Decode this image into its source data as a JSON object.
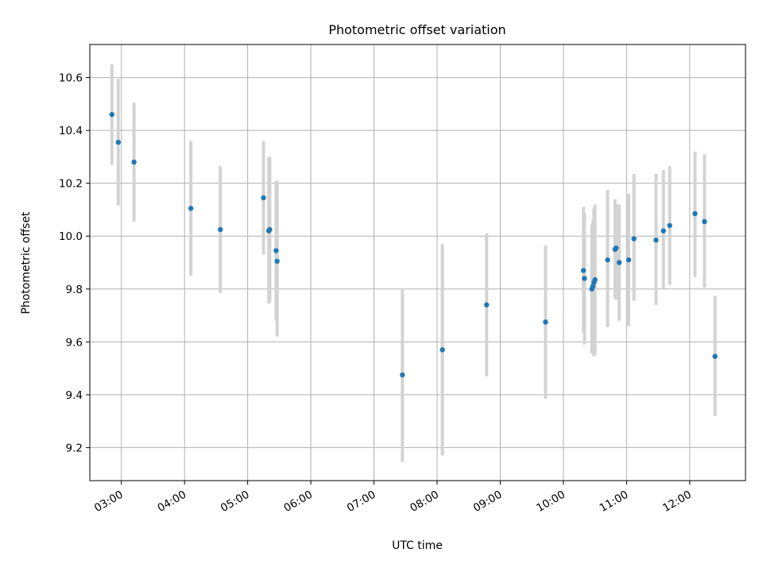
{
  "chart_data": {
    "type": "scatter",
    "title": "Photometric offset variation",
    "xlabel": "UTC time",
    "ylabel": "Photometric offset",
    "grid": true,
    "xlim": [
      "02:30",
      "12:53"
    ],
    "ylim": [
      9.075,
      10.725
    ],
    "x_ticks": [
      "03:00",
      "04:00",
      "05:00",
      "06:00",
      "07:00",
      "08:00",
      "09:00",
      "10:00",
      "11:00",
      "12:00"
    ],
    "y_ticks": [
      9.2,
      9.4,
      9.6,
      9.8,
      10.0,
      10.2,
      10.4,
      10.6
    ],
    "y_tick_labels": [
      "9.2",
      "9.4",
      "9.6",
      "9.8",
      "10.0",
      "10.2",
      "10.4",
      "10.6"
    ],
    "colors": {
      "points": "#1f77b4",
      "error_bars": "#d3d3d3"
    },
    "points": [
      {
        "x": "02:51",
        "y": 10.46,
        "ylow": 10.27,
        "yhigh": 10.65
      },
      {
        "x": "02:57",
        "y": 10.355,
        "ylow": 10.115,
        "yhigh": 10.595
      },
      {
        "x": "03:12",
        "y": 10.28,
        "ylow": 10.055,
        "yhigh": 10.505
      },
      {
        "x": "04:06",
        "y": 10.105,
        "ylow": 9.85,
        "yhigh": 10.36
      },
      {
        "x": "04:34",
        "y": 10.025,
        "ylow": 9.785,
        "yhigh": 10.265
      },
      {
        "x": "05:15",
        "y": 10.145,
        "ylow": 9.93,
        "yhigh": 10.36
      },
      {
        "x": "05:20",
        "y": 10.02,
        "ylow": 9.745,
        "yhigh": 10.3
      },
      {
        "x": "05:21",
        "y": 10.025,
        "ylow": 9.75,
        "yhigh": 10.3
      },
      {
        "x": "05:27",
        "y": 9.945,
        "ylow": 9.68,
        "yhigh": 10.21
      },
      {
        "x": "05:28",
        "y": 9.905,
        "ylow": 9.62,
        "yhigh": 10.21
      },
      {
        "x": "07:27",
        "y": 9.475,
        "ylow": 9.145,
        "yhigh": 9.8
      },
      {
        "x": "08:05",
        "y": 9.57,
        "ylow": 9.17,
        "yhigh": 9.97
      },
      {
        "x": "08:47",
        "y": 9.74,
        "ylow": 9.47,
        "yhigh": 10.01
      },
      {
        "x": "09:43",
        "y": 9.675,
        "ylow": 9.385,
        "yhigh": 9.965
      },
      {
        "x": "10:19",
        "y": 9.87,
        "ylow": 9.635,
        "yhigh": 10.11
      },
      {
        "x": "10:20",
        "y": 9.84,
        "ylow": 9.59,
        "yhigh": 10.09
      },
      {
        "x": "10:27",
        "y": 9.8,
        "ylow": 9.555,
        "yhigh": 10.045
      },
      {
        "x": "10:28",
        "y": 9.81,
        "ylow": 9.56,
        "yhigh": 10.06
      },
      {
        "x": "10:29",
        "y": 9.825,
        "ylow": 9.545,
        "yhigh": 10.105
      },
      {
        "x": "10:30",
        "y": 9.835,
        "ylow": 9.55,
        "yhigh": 10.12
      },
      {
        "x": "10:42",
        "y": 9.91,
        "ylow": 9.655,
        "yhigh": 10.175
      },
      {
        "x": "10:49",
        "y": 9.95,
        "ylow": 9.765,
        "yhigh": 10.14
      },
      {
        "x": "10:50",
        "y": 9.955,
        "ylow": 9.76,
        "yhigh": 10.12
      },
      {
        "x": "10:53",
        "y": 9.9,
        "ylow": 9.68,
        "yhigh": 10.12
      },
      {
        "x": "11:02",
        "y": 9.91,
        "ylow": 9.66,
        "yhigh": 10.16
      },
      {
        "x": "11:07",
        "y": 9.99,
        "ylow": 9.755,
        "yhigh": 10.235
      },
      {
        "x": "11:28",
        "y": 9.985,
        "ylow": 9.74,
        "yhigh": 10.235
      },
      {
        "x": "11:35",
        "y": 10.02,
        "ylow": 9.8,
        "yhigh": 10.25
      },
      {
        "x": "11:41",
        "y": 10.04,
        "ylow": 9.815,
        "yhigh": 10.265
      },
      {
        "x": "12:05",
        "y": 10.085,
        "ylow": 9.845,
        "yhigh": 10.32
      },
      {
        "x": "12:14",
        "y": 10.055,
        "ylow": 9.805,
        "yhigh": 10.31
      },
      {
        "x": "12:24",
        "y": 9.545,
        "ylow": 9.32,
        "yhigh": 9.775
      }
    ]
  }
}
